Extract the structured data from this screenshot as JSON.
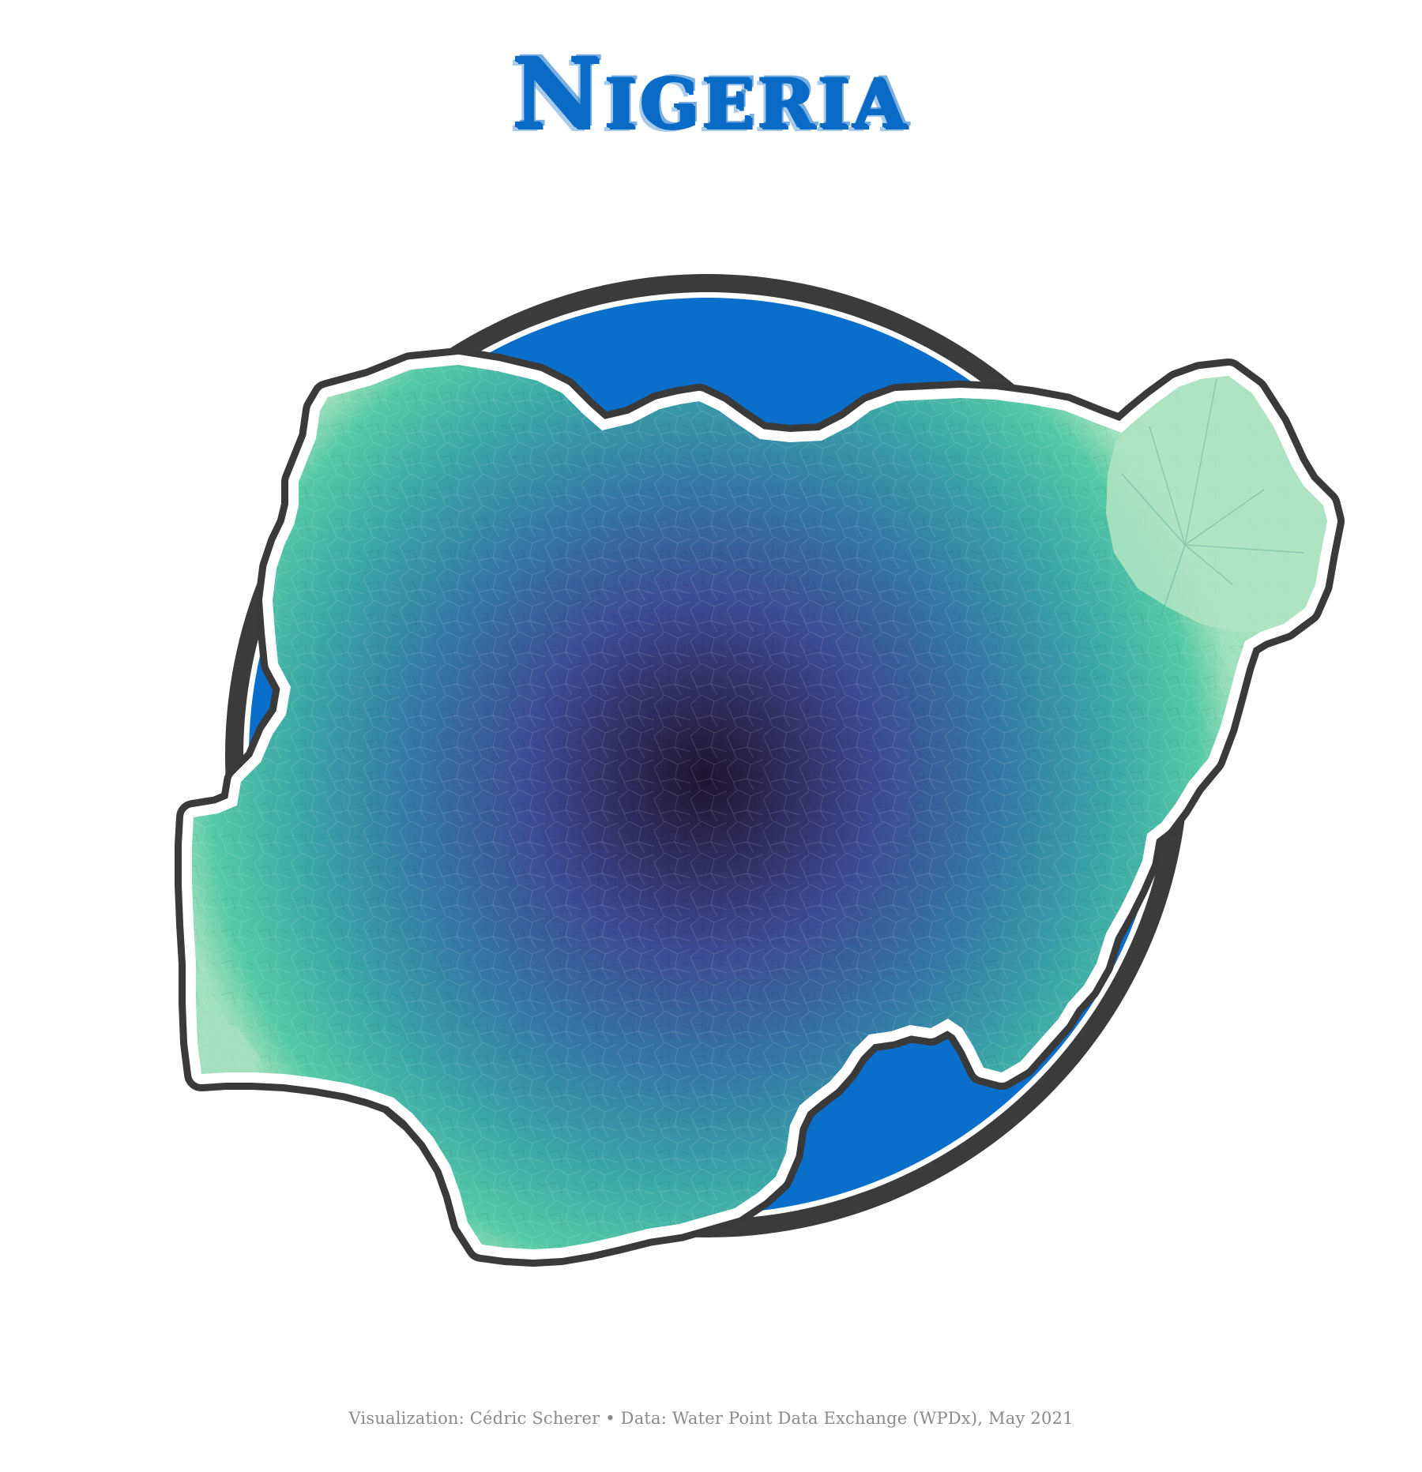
{
  "title": "Nigeria",
  "caption": "Visualization: Cédric Scherer • Data: Water Point Data Exchange (WPDx), May 2021",
  "colors": {
    "title": "#0a6bc7",
    "circle_fill": "#0a6fca",
    "circle_ring": "#3b3b3b",
    "outline_dark": "#3a3a3a",
    "outline_light": "#ffffff",
    "gradient_center": "#1c1530",
    "gradient_mid": "#3d4a94",
    "gradient_outer": "#3a9fa8",
    "gradient_edge": "#55c9a5",
    "gradient_pale": "#b5e6c8"
  }
}
